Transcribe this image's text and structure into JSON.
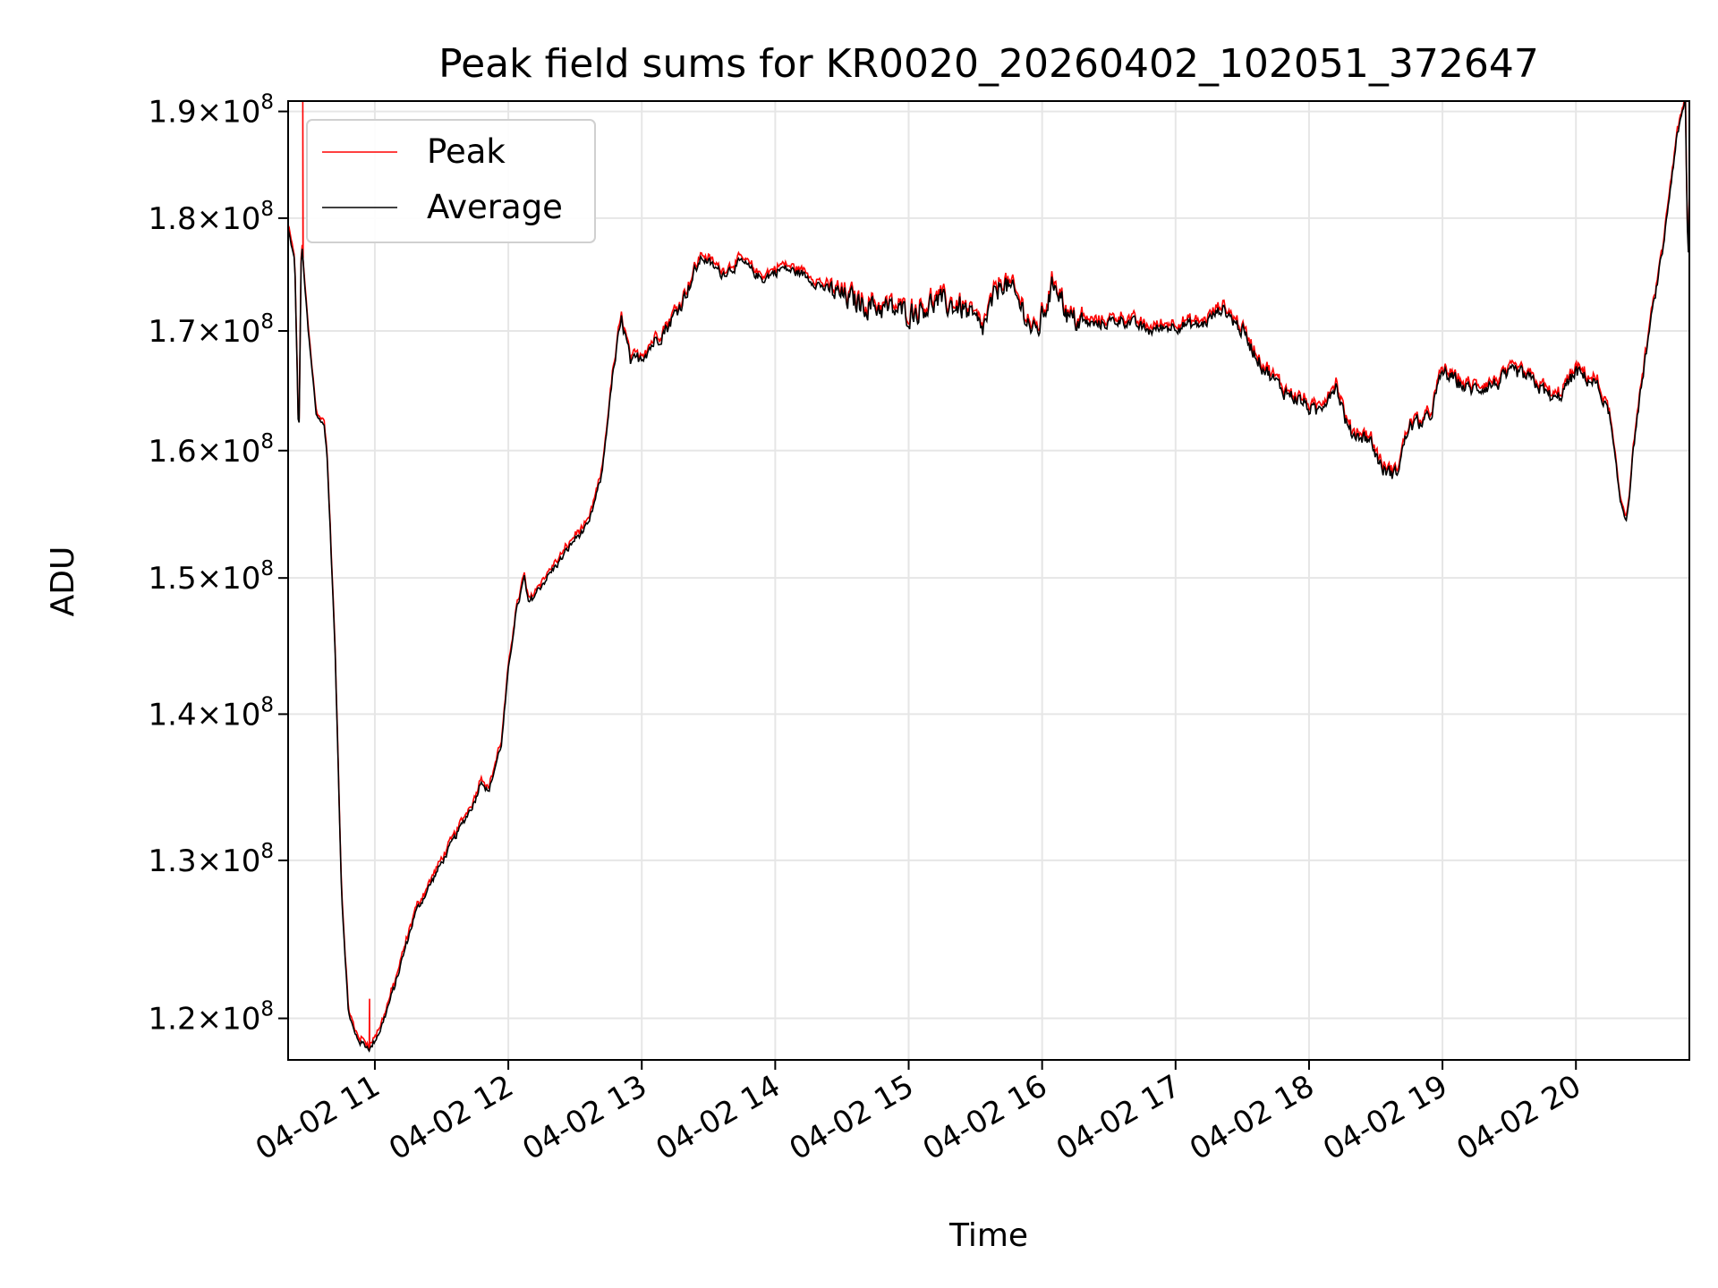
{
  "chart_data": {
    "type": "line",
    "title": "Peak field sums for KR0020_20260402_102051_372647",
    "xlabel": "Time",
    "ylabel": "ADU",
    "yscale": "log",
    "grid": true,
    "legend_position": "top-left",
    "xlim": [
      10.35,
      20.85
    ],
    "ylim": [
      117500000,
      191000000
    ],
    "x_ticks": [
      11,
      12,
      13,
      14,
      15,
      16,
      17,
      18,
      19,
      20
    ],
    "x_tick_labels": [
      "04-02 11",
      "04-02 12",
      "04-02 13",
      "04-02 14",
      "04-02 15",
      "04-02 16",
      "04-02 17",
      "04-02 18",
      "04-02 19",
      "04-02 20"
    ],
    "y_ticks": [
      {
        "value": 120000000,
        "mantissa": "1.2",
        "exponent": "8"
      },
      {
        "value": 130000000,
        "mantissa": "1.3",
        "exponent": "8"
      },
      {
        "value": 140000000,
        "mantissa": "1.4",
        "exponent": "8"
      },
      {
        "value": 150000000,
        "mantissa": "1.5",
        "exponent": "8"
      },
      {
        "value": 160000000,
        "mantissa": "1.6",
        "exponent": "8"
      },
      {
        "value": 170000000,
        "mantissa": "1.7",
        "exponent": "8"
      },
      {
        "value": 180000000,
        "mantissa": "1.8",
        "exponent": "8"
      },
      {
        "value": 190000000,
        "mantissa": "1.9",
        "exponent": "8"
      }
    ],
    "y_tick_text": "10",
    "times_sign": "×",
    "series": [
      {
        "name": "Peak",
        "color": "#ff0000"
      },
      {
        "name": "Average",
        "color": "#000000"
      }
    ],
    "anchors": [
      [
        10.35,
        179000000
      ],
      [
        10.4,
        176000000
      ],
      [
        10.43,
        160000000
      ],
      [
        10.45,
        178000000
      ],
      [
        10.5,
        170000000
      ],
      [
        10.56,
        163000000
      ],
      [
        10.62,
        162000000
      ],
      [
        10.64,
        160000000
      ],
      [
        10.7,
        145000000
      ],
      [
        10.75,
        128000000
      ],
      [
        10.8,
        120500000
      ],
      [
        10.85,
        119000000
      ],
      [
        10.9,
        118500000
      ],
      [
        10.97,
        118200000
      ],
      [
        11.05,
        119500000
      ],
      [
        11.15,
        122000000
      ],
      [
        11.3,
        126500000
      ],
      [
        11.45,
        129000000
      ],
      [
        11.6,
        131500000
      ],
      [
        11.75,
        134000000
      ],
      [
        11.8,
        135500000
      ],
      [
        11.85,
        134500000
      ],
      [
        11.95,
        138000000
      ],
      [
        12.0,
        143000000
      ],
      [
        12.05,
        147000000
      ],
      [
        12.12,
        150000000
      ],
      [
        12.15,
        148000000
      ],
      [
        12.25,
        149500000
      ],
      [
        12.4,
        151500000
      ],
      [
        12.5,
        153000000
      ],
      [
        12.6,
        154000000
      ],
      [
        12.7,
        158000000
      ],
      [
        12.78,
        166000000
      ],
      [
        12.85,
        171000000
      ],
      [
        12.92,
        167000000
      ],
      [
        13.05,
        168500000
      ],
      [
        13.2,
        170500000
      ],
      [
        13.3,
        172500000
      ],
      [
        13.45,
        176500000
      ],
      [
        13.6,
        175000000
      ],
      [
        13.75,
        176000000
      ],
      [
        13.9,
        174500000
      ],
      [
        14.05,
        175500000
      ],
      [
        14.2,
        175000000
      ],
      [
        14.4,
        173500000
      ],
      [
        14.6,
        172500000
      ],
      [
        14.8,
        172000000
      ],
      [
        15.0,
        171500000
      ],
      [
        15.2,
        172500000
      ],
      [
        15.4,
        172000000
      ],
      [
        15.55,
        170000000
      ],
      [
        15.7,
        174500000
      ],
      [
        15.85,
        172000000
      ],
      [
        15.95,
        169500000
      ],
      [
        16.1,
        174500000
      ],
      [
        16.2,
        171000000
      ],
      [
        16.4,
        170500000
      ],
      [
        16.6,
        171000000
      ],
      [
        16.8,
        170000000
      ],
      [
        17.0,
        170500000
      ],
      [
        17.2,
        170500000
      ],
      [
        17.35,
        172000000
      ],
      [
        17.5,
        170000000
      ],
      [
        17.65,
        167000000
      ],
      [
        17.8,
        165000000
      ],
      [
        17.95,
        164000000
      ],
      [
        18.05,
        163000000
      ],
      [
        18.2,
        165500000
      ],
      [
        18.3,
        161500000
      ],
      [
        18.45,
        161000000
      ],
      [
        18.55,
        158500000
      ],
      [
        18.65,
        158000000
      ],
      [
        18.75,
        162000000
      ],
      [
        18.9,
        162500000
      ],
      [
        19.0,
        166500000
      ],
      [
        19.2,
        165000000
      ],
      [
        19.4,
        165500000
      ],
      [
        19.55,
        166500000
      ],
      [
        19.7,
        165500000
      ],
      [
        19.85,
        164000000
      ],
      [
        20.0,
        166500000
      ],
      [
        20.15,
        165500000
      ],
      [
        20.25,
        163000000
      ],
      [
        20.33,
        156000000
      ],
      [
        20.38,
        154500000
      ],
      [
        20.45,
        162000000
      ],
      [
        20.55,
        170000000
      ],
      [
        20.65,
        177000000
      ],
      [
        20.75,
        187000000
      ],
      [
        20.82,
        191000000
      ],
      [
        20.84,
        175000000
      ],
      [
        20.85,
        182000000
      ]
    ],
    "noise": [
      [
        10.35,
        10.65,
        0.002
      ],
      [
        10.65,
        12.8,
        0.003
      ],
      [
        12.8,
        13.4,
        0.006
      ],
      [
        13.4,
        14.4,
        0.004
      ],
      [
        14.4,
        16.3,
        0.01
      ],
      [
        16.3,
        17.4,
        0.005
      ],
      [
        17.4,
        20.2,
        0.006
      ],
      [
        20.2,
        20.85,
        0.004
      ]
    ],
    "peak_spikes": [
      [
        10.46,
        191000000
      ],
      [
        10.96,
        121200000
      ],
      [
        20.82,
        191000000
      ]
    ]
  }
}
